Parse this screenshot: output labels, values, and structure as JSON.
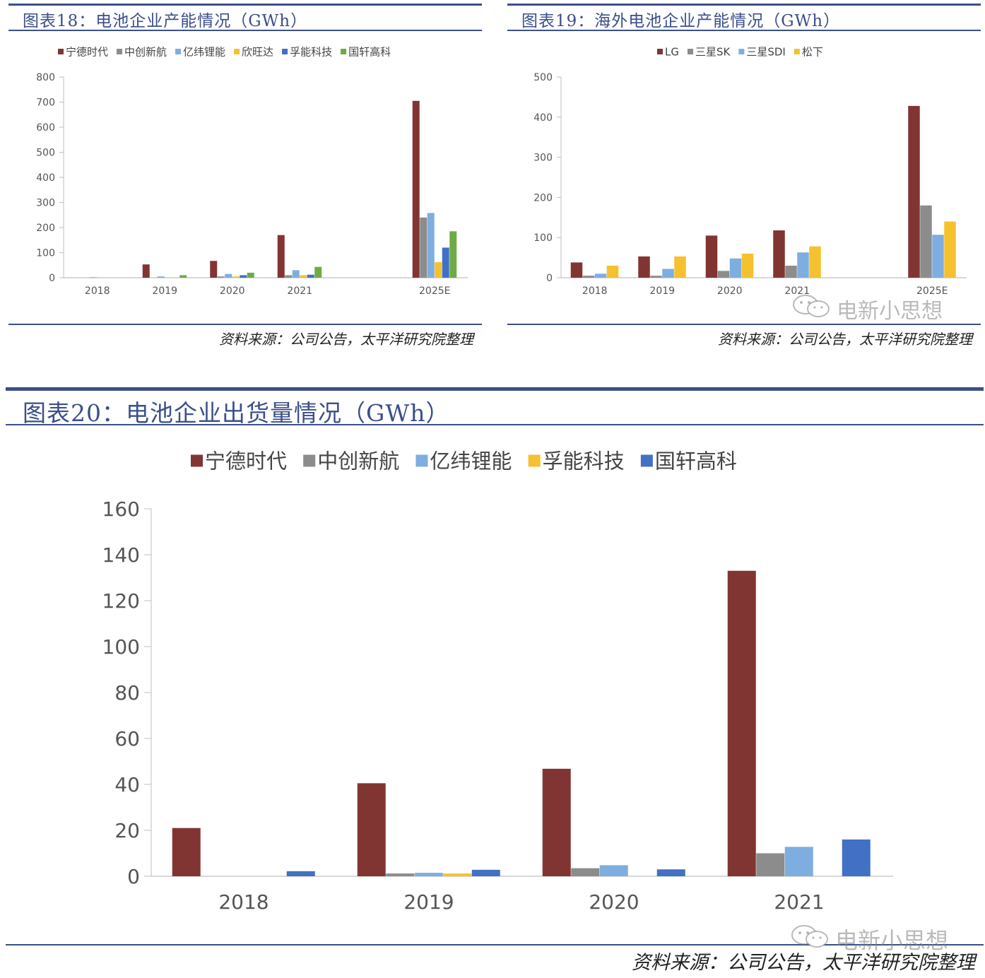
{
  "palette": {
    "title_color": "#3b4f8a",
    "catl": "#813533",
    "gray": "#8c8c8c",
    "lightblue": "#7eaee0",
    "yellow": "#f5c12e",
    "blue": "#4170c4",
    "green": "#6eab46"
  },
  "source_text": "资料来源：公司公告，太平洋研究院整理",
  "watermark": "电新小思想",
  "chart_data": [
    {
      "type": "bar",
      "id": "fig18",
      "title": "图表18：电池企业产能情况（GWh）",
      "categories": [
        "2018",
        "2019",
        "2020",
        "2021",
        "2025E"
      ],
      "category_slots": [
        0,
        1,
        2,
        3,
        5
      ],
      "ylim": [
        0,
        800
      ],
      "yticks": [
        0,
        100,
        200,
        300,
        400,
        500,
        600,
        700,
        800
      ],
      "legend_position": "top",
      "series": [
        {
          "name": "宁德时代",
          "color": "#813533",
          "values": [
            0,
            53,
            67,
            170,
            705
          ]
        },
        {
          "name": "中创新航",
          "color": "#8c8c8c",
          "values": [
            0,
            0,
            5,
            10,
            240
          ]
        },
        {
          "name": "亿纬锂能",
          "color": "#7eaee0",
          "values": [
            2,
            5,
            15,
            30,
            258
          ]
        },
        {
          "name": "欣旺达",
          "color": "#f5c12e",
          "values": [
            0,
            0,
            5,
            10,
            62
          ]
        },
        {
          "name": "孚能科技",
          "color": "#4170c4",
          "values": [
            0,
            0,
            10,
            12,
            120
          ]
        },
        {
          "name": "国轩高科",
          "color": "#6eab46",
          "values": [
            0,
            10,
            20,
            43,
            185
          ]
        }
      ]
    },
    {
      "type": "bar",
      "id": "fig19",
      "title": "图表19：海外电池企业产能情况（GWh）",
      "categories": [
        "2018",
        "2019",
        "2020",
        "2021",
        "2025E"
      ],
      "category_slots": [
        0,
        1,
        2,
        3,
        5
      ],
      "ylim": [
        0,
        500
      ],
      "yticks": [
        0,
        100,
        200,
        300,
        400,
        500
      ],
      "legend_position": "top",
      "series": [
        {
          "name": "LG",
          "color": "#813533",
          "values": [
            38,
            53,
            105,
            118,
            428
          ]
        },
        {
          "name": "三星SK",
          "color": "#8c8c8c",
          "values": [
            5,
            5,
            17,
            30,
            180
          ]
        },
        {
          "name": "三星SDI",
          "color": "#7eaee0",
          "values": [
            10,
            22,
            48,
            63,
            107
          ]
        },
        {
          "name": "松下",
          "color": "#f5c12e",
          "values": [
            30,
            53,
            60,
            78,
            140
          ]
        }
      ]
    },
    {
      "type": "bar",
      "id": "fig20",
      "title": "图表20：电池企业出货量情况（GWh）",
      "categories": [
        "2018",
        "2019",
        "2020",
        "2021"
      ],
      "category_slots": [
        0,
        1,
        2,
        3
      ],
      "ylim": [
        0,
        160
      ],
      "yticks": [
        0,
        20,
        40,
        60,
        80,
        100,
        120,
        140,
        160
      ],
      "legend_position": "top",
      "series": [
        {
          "name": "宁德时代",
          "color": "#813533",
          "values": [
            21,
            40.5,
            46.8,
            133
          ]
        },
        {
          "name": "中创新航",
          "color": "#8c8c8c",
          "values": [
            0,
            1.2,
            3.5,
            10
          ]
        },
        {
          "name": "亿纬锂能",
          "color": "#7eaee0",
          "values": [
            0,
            1.5,
            4.8,
            12.8
          ]
        },
        {
          "name": "孚能科技",
          "color": "#f5c12e",
          "values": [
            0,
            1.2,
            0,
            0
          ]
        },
        {
          "name": "国轩高科",
          "color": "#4170c4",
          "values": [
            2.2,
            2.8,
            3,
            16
          ]
        }
      ]
    }
  ]
}
